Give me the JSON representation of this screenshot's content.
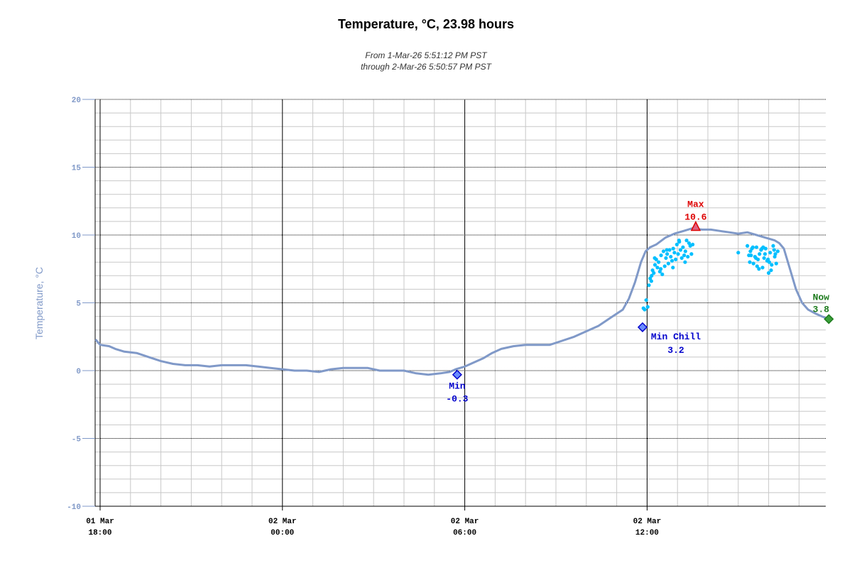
{
  "chart_data": {
    "type": "line",
    "title": "Temperature, °C, 23.98 hours",
    "subtitle_line1": "From 1-Mar-26 5:51:12 PM PST",
    "subtitle_line2": "through 2-Mar-26 5:50:57 PM PST",
    "ylabel": "Temperature, °C",
    "xlabel": "",
    "ylim": [
      -10,
      20
    ],
    "xlim_hours": [
      -0.15,
      23.98
    ],
    "y_ticks": [
      "20",
      "15",
      "10",
      "5",
      "0",
      "-5",
      "-10"
    ],
    "y_tick_values": [
      20,
      15,
      10,
      5,
      0,
      -5,
      -10
    ],
    "x_ticks": [
      {
        "hour": 0,
        "line1": "01 Mar",
        "line2": "18:00"
      },
      {
        "hour": 6,
        "line1": "02 Mar",
        "line2": "00:00"
      },
      {
        "hour": 12,
        "line1": "02 Mar",
        "line2": "06:00"
      },
      {
        "hour": 18,
        "line1": "02 Mar",
        "line2": "12:00"
      }
    ],
    "series": [
      {
        "name": "Temperature",
        "color": "#8099c8",
        "x_hours": [
          -0.15,
          0,
          0.3,
          0.5,
          0.8,
          1.2,
          1.6,
          2.0,
          2.4,
          2.8,
          3.2,
          3.6,
          4.0,
          4.4,
          4.8,
          5.2,
          5.6,
          6.0,
          6.4,
          6.8,
          7.2,
          7.6,
          8.0,
          8.4,
          8.8,
          9.2,
          9.6,
          10.0,
          10.4,
          10.8,
          11.2,
          11.5,
          11.7,
          12.0,
          12.3,
          12.6,
          12.9,
          13.2,
          13.6,
          14.0,
          14.4,
          14.8,
          15.2,
          15.6,
          16.0,
          16.4,
          16.8,
          17.2,
          17.4,
          17.6,
          17.8,
          17.95,
          18.1,
          18.3,
          18.6,
          18.9,
          19.2,
          19.5,
          19.8,
          20.1,
          20.4,
          20.7,
          21.0,
          21.3,
          21.6,
          21.9,
          22.2,
          22.35,
          22.5,
          22.7,
          22.9,
          23.1,
          23.3,
          23.55,
          23.75,
          23.98
        ],
        "y_values": [
          2.3,
          1.9,
          1.8,
          1.6,
          1.4,
          1.3,
          1.0,
          0.7,
          0.5,
          0.4,
          0.4,
          0.3,
          0.4,
          0.4,
          0.4,
          0.3,
          0.2,
          0.1,
          0.0,
          0.0,
          -0.1,
          0.1,
          0.2,
          0.2,
          0.2,
          0.0,
          0.0,
          0.0,
          -0.2,
          -0.3,
          -0.2,
          -0.1,
          0.1,
          0.3,
          0.6,
          0.9,
          1.3,
          1.6,
          1.8,
          1.9,
          1.9,
          1.9,
          2.2,
          2.5,
          2.9,
          3.3,
          3.9,
          4.5,
          5.3,
          6.5,
          8.0,
          8.8,
          9.1,
          9.3,
          9.8,
          10.1,
          10.3,
          10.5,
          10.4,
          10.4,
          10.3,
          10.2,
          10.1,
          10.2,
          10.0,
          9.8,
          9.6,
          9.4,
          9.0,
          7.5,
          6.0,
          5.0,
          4.5,
          4.2,
          4.0,
          3.8
        ]
      },
      {
        "name": "Chill readings",
        "color": "#00bfff",
        "x_hours": [
          17.88,
          17.92,
          17.97,
          18.02,
          18.06,
          18.1,
          18.14,
          18.18,
          18.22,
          18.26,
          18.3,
          18.34,
          18.38,
          18.42,
          18.46,
          18.5,
          18.54,
          18.58,
          18.62,
          18.66,
          18.7,
          18.74,
          18.78,
          18.82,
          18.86,
          18.9,
          18.94,
          18.98,
          19.02,
          19.06,
          19.1,
          19.14,
          19.18,
          19.22,
          19.26,
          19.3,
          19.34,
          19.38,
          19.42,
          19.46,
          19.5,
          18.15,
          18.25,
          18.45,
          18.65,
          18.85,
          19.05,
          19.25,
          21.0,
          21.3,
          21.35,
          21.4,
          21.45,
          21.5,
          21.55,
          21.6,
          21.65,
          21.7,
          21.75,
          21.8,
          21.85,
          21.9,
          21.95,
          22.0,
          22.05,
          22.1,
          22.15,
          22.2,
          22.25,
          22.3,
          21.38,
          21.48,
          21.58,
          21.68,
          21.78,
          21.88,
          21.98,
          22.08,
          22.18,
          21.42,
          21.62,
          21.82,
          22.02,
          22.22
        ],
        "y_values": [
          4.6,
          4.5,
          5.2,
          4.7,
          6.3,
          6.8,
          6.6,
          7.4,
          7.2,
          7.8,
          8.2,
          7.6,
          8.0,
          7.3,
          8.5,
          7.1,
          8.8,
          7.7,
          8.3,
          8.6,
          7.9,
          8.9,
          8.4,
          8.1,
          9.0,
          8.7,
          8.2,
          9.3,
          8.6,
          9.5,
          8.9,
          8.3,
          9.1,
          8.5,
          8.8,
          9.6,
          8.4,
          9.4,
          9.2,
          8.6,
          9.3,
          7.0,
          8.3,
          7.5,
          8.9,
          7.6,
          9.6,
          8.0,
          8.7,
          9.2,
          8.5,
          8.8,
          9.0,
          7.9,
          8.4,
          9.1,
          8.2,
          8.6,
          8.9,
          7.6,
          8.3,
          9.0,
          8.1,
          7.2,
          8.7,
          7.8,
          9.2,
          8.4,
          7.9,
          8.8,
          8.0,
          9.1,
          8.3,
          7.5,
          9.0,
          8.6,
          8.2,
          7.4,
          8.9,
          8.5,
          7.7,
          9.1,
          8.0,
          8.6
        ]
      }
    ],
    "annotations": [
      {
        "name": "min",
        "label": "Min",
        "value": "-0.3",
        "x_hour": 11.75,
        "y": -0.3,
        "marker": "diamond",
        "color": "#0000cc",
        "fill": "#6a8cff",
        "text_position": "below"
      },
      {
        "name": "min-chill",
        "label": "Min Chill",
        "value": "3.2",
        "x_hour": 17.85,
        "y": 3.2,
        "marker": "diamond",
        "color": "#0000cc",
        "fill": "#6a8cff",
        "text_position": "below-right"
      },
      {
        "name": "max",
        "label": "Max",
        "value": "10.6",
        "x_hour": 19.6,
        "y": 10.6,
        "marker": "triangle",
        "color": "#dd0000",
        "fill": "#e06080",
        "text_position": "above"
      },
      {
        "name": "now",
        "label": "Now",
        "value": "3.8",
        "x_hour": 23.98,
        "y": 3.8,
        "marker": "diamond",
        "color": "#1e7b1e",
        "fill": "#3aa03a",
        "text_position": "above"
      }
    ],
    "grid": true,
    "legend": "none"
  }
}
